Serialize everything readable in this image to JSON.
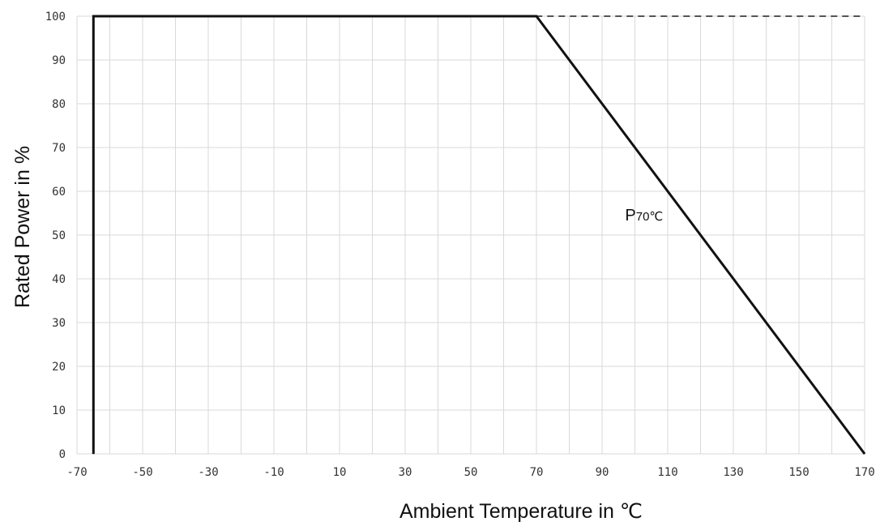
{
  "chart_data": {
    "type": "line",
    "title": "",
    "xlabel": "Ambient Temperature  in ℃",
    "ylabel": "Rated Power in %",
    "xlim": [
      -70,
      170
    ],
    "ylim": [
      0,
      100
    ],
    "x_ticks": [
      -70,
      -50,
      -30,
      -10,
      10,
      30,
      50,
      70,
      90,
      110,
      130,
      150,
      170
    ],
    "x_tick_labels": [
      "-70",
      "-50",
      "-30",
      "-10",
      "10",
      "30",
      "50",
      "70",
      "90",
      "110",
      "130",
      "150",
      "170"
    ],
    "y_ticks": [
      0,
      10,
      20,
      30,
      40,
      50,
      60,
      70,
      80,
      90,
      100
    ],
    "y_tick_labels": [
      "0",
      "10",
      "20",
      "30",
      "40",
      "50",
      "60",
      "70",
      "80",
      "90",
      "100"
    ],
    "grid": true,
    "series": [
      {
        "x": [
          -65,
          -65,
          70,
          170
        ],
        "y": [
          0,
          100,
          100,
          0
        ],
        "color": "#111111"
      }
    ],
    "annotations": [
      {
        "main": "P",
        "sub": "70℃",
        "x": 97,
        "y": 55
      }
    ],
    "colors": {
      "line": "#111111",
      "grid": "#d9d9d9",
      "axis_text": "#333333"
    }
  }
}
